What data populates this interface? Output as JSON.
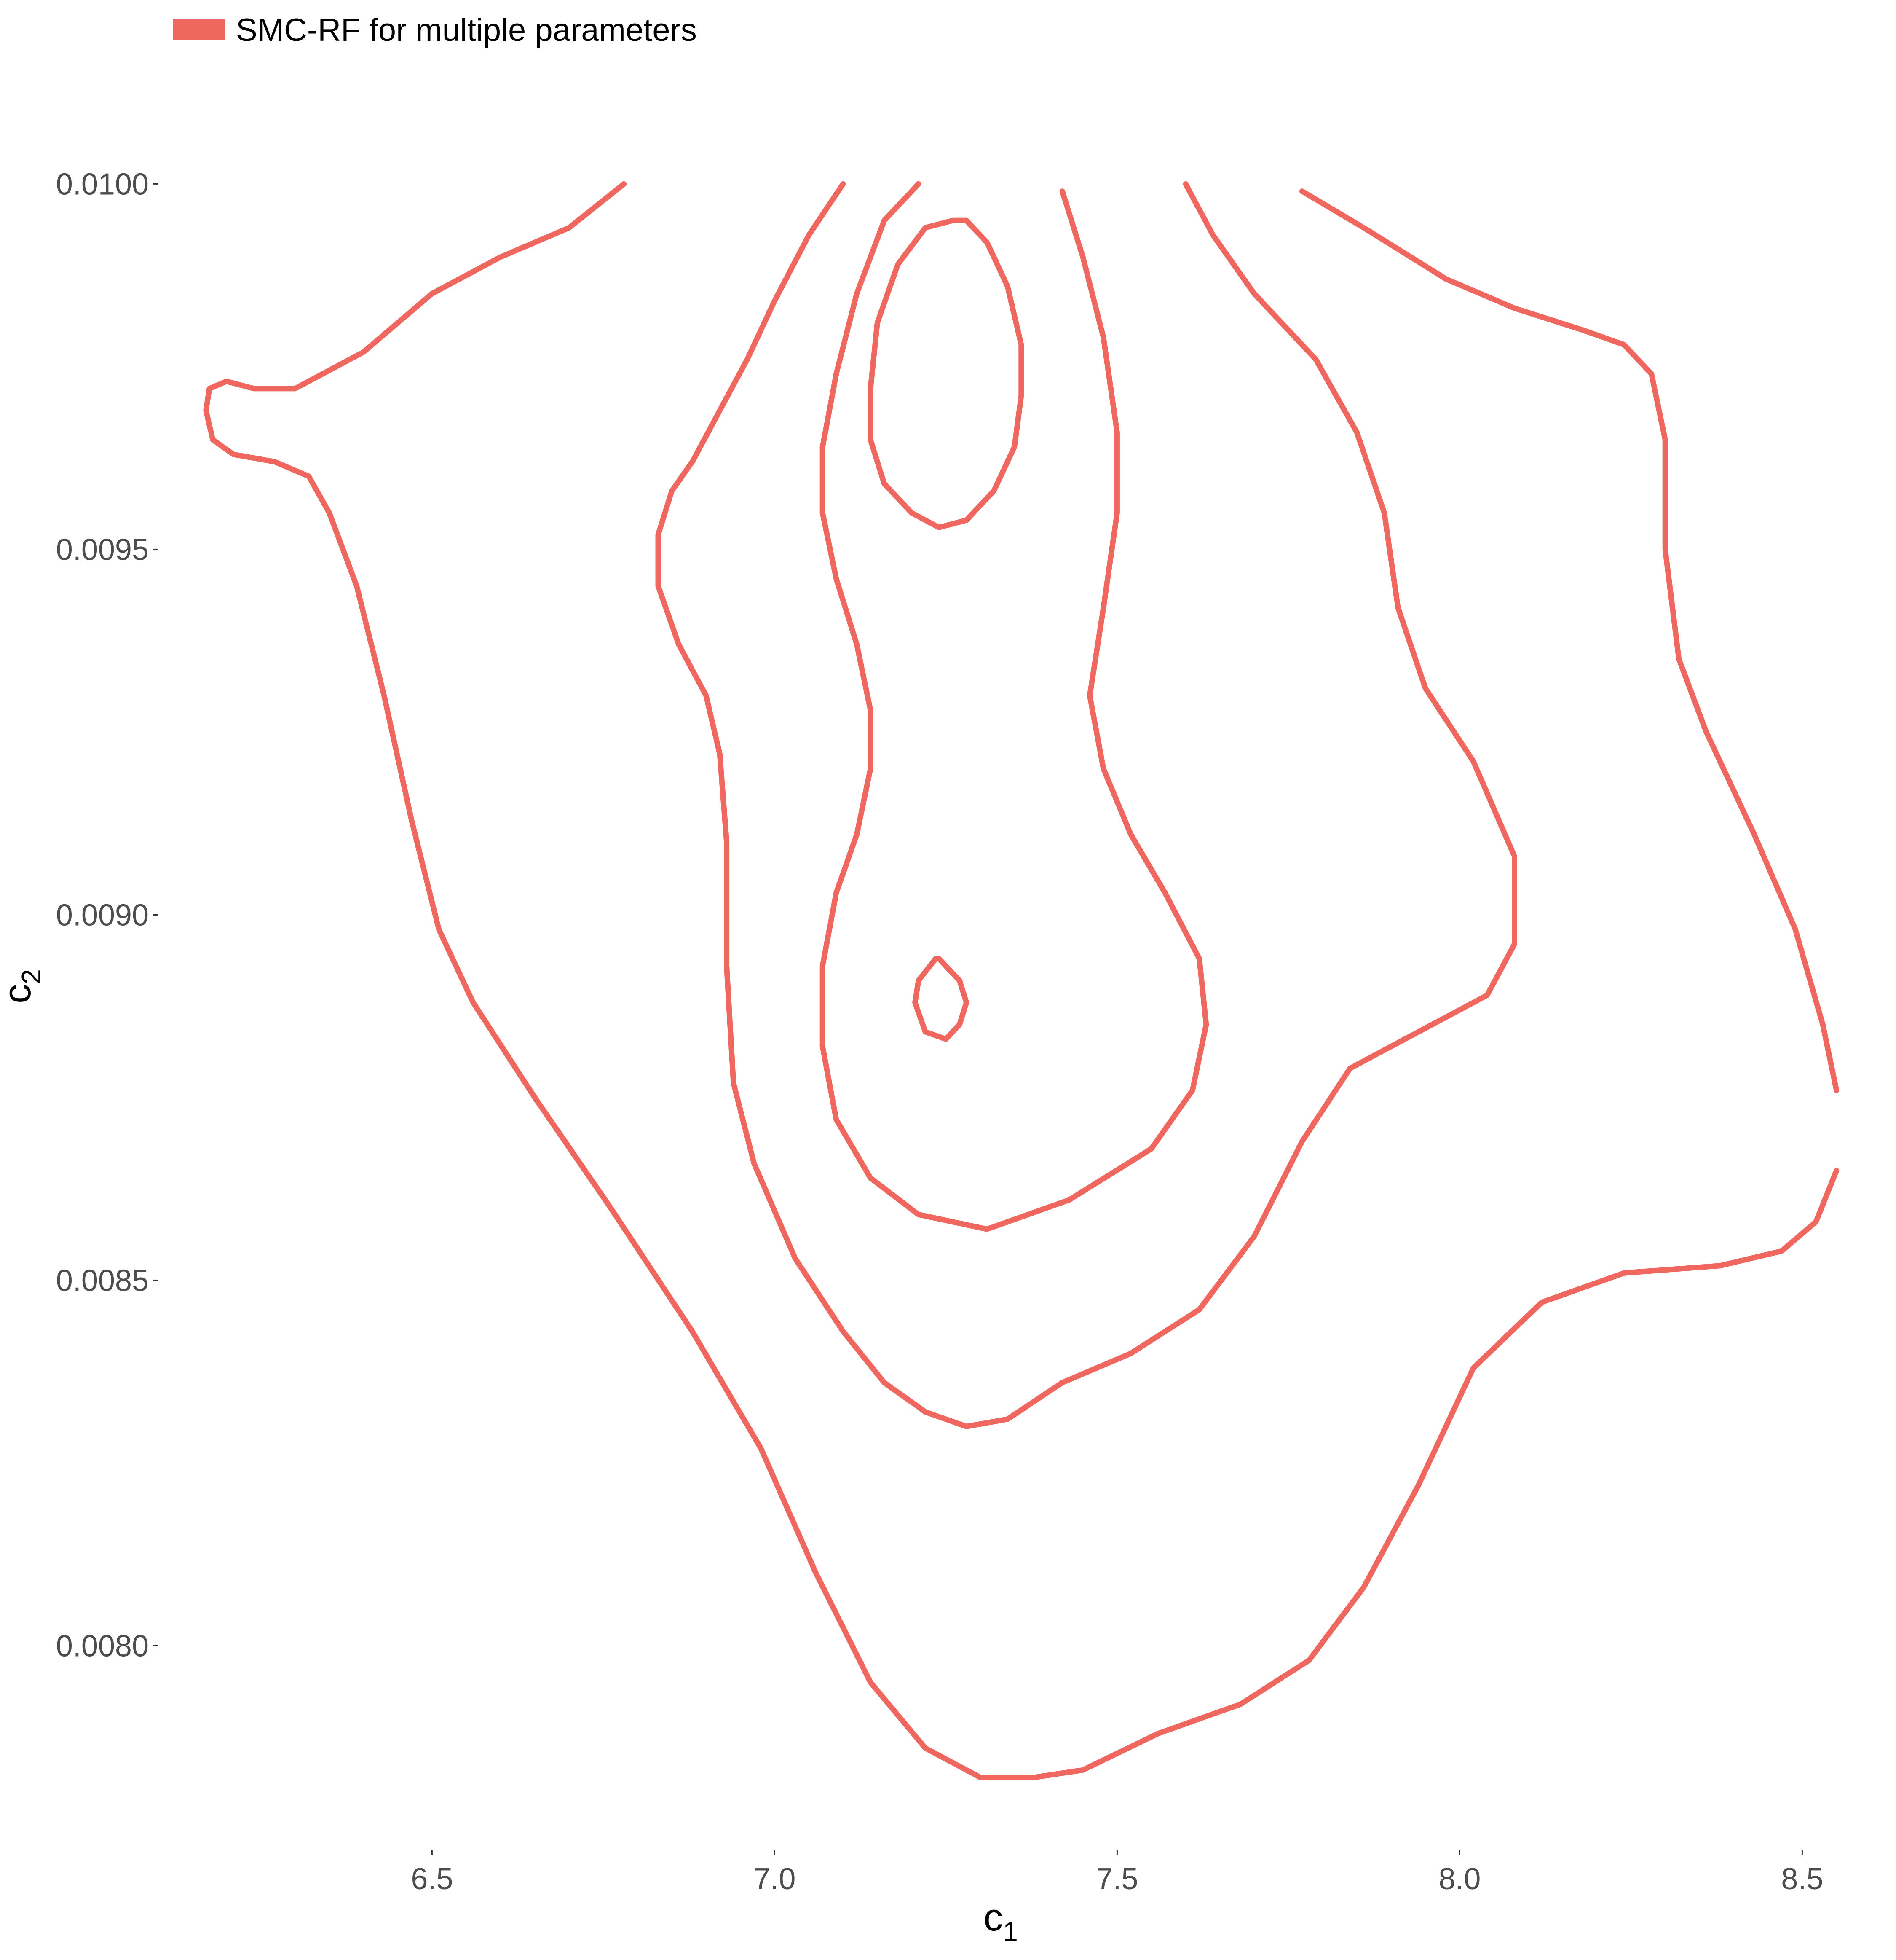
{
  "chart_data": {
    "type": "contour",
    "title": "",
    "xlabel": "c",
    "xlabel_sub": "1",
    "ylabel": "c",
    "ylabel_sub": "2",
    "xlim": [
      6.1,
      8.6
    ],
    "ylim": [
      0.00772,
      0.01007
    ],
    "x_ticks": [
      6.5,
      7.0,
      7.5,
      8.0,
      8.5
    ],
    "x_tick_labels": [
      "6.5",
      "7.0",
      "7.5",
      "8.0",
      "8.5"
    ],
    "y_ticks": [
      0.008,
      0.0085,
      0.009,
      0.0095,
      0.01
    ],
    "y_tick_labels": [
      "0.0080",
      "0.0085",
      "0.0090",
      "0.0095",
      "0.0100"
    ],
    "grid": false,
    "legend_position": "top-left",
    "series": [
      {
        "name": "SMC-RF for multiple parameters",
        "color": "#f0675f",
        "contours": [
          {
            "closed": false,
            "points": [
              [
                6.78,
                0.01
              ],
              [
                6.7,
                0.00994
              ],
              [
                6.6,
                0.0099
              ],
              [
                6.5,
                0.00985
              ],
              [
                6.4,
                0.00977
              ],
              [
                6.3,
                0.00972
              ],
              [
                6.24,
                0.00972
              ],
              [
                6.2,
                0.00973
              ],
              [
                6.175,
                0.00972
              ],
              [
                6.17,
                0.00969
              ],
              [
                6.18,
                0.00965
              ],
              [
                6.21,
                0.00963
              ],
              [
                6.27,
                0.00962
              ],
              [
                6.32,
                0.0096
              ],
              [
                6.35,
                0.00955
              ],
              [
                6.39,
                0.00945
              ],
              [
                6.43,
                0.0093
              ],
              [
                6.47,
                0.00913
              ],
              [
                6.51,
                0.00898
              ],
              [
                6.56,
                0.00888
              ],
              [
                6.65,
                0.00875
              ],
              [
                6.76,
                0.0086
              ],
              [
                6.88,
                0.00843
              ],
              [
                6.98,
                0.00827
              ],
              [
                7.06,
                0.0081
              ],
              [
                7.14,
                0.00795
              ],
              [
                7.22,
                0.00786
              ],
              [
                7.3,
                0.00782
              ],
              [
                7.38,
                0.00782
              ],
              [
                7.45,
                0.00783
              ],
              [
                7.56,
                0.00788
              ],
              [
                7.68,
                0.00792
              ],
              [
                7.78,
                0.00798
              ],
              [
                7.86,
                0.00808
              ],
              [
                7.94,
                0.00822
              ],
              [
                8.02,
                0.00838
              ],
              [
                8.12,
                0.00847
              ],
              [
                8.24,
                0.00851
              ],
              [
                8.38,
                0.00852
              ],
              [
                8.47,
                0.00854
              ],
              [
                8.52,
                0.00858
              ],
              [
                8.55,
                0.00865
              ]
            ]
          },
          {
            "closed": false,
            "points": [
              [
                8.55,
                0.00876
              ],
              [
                8.53,
                0.00885
              ],
              [
                8.49,
                0.00898
              ],
              [
                8.43,
                0.00911
              ],
              [
                8.36,
                0.00925
              ],
              [
                8.32,
                0.00935
              ],
              [
                8.3,
                0.0095
              ],
              [
                8.3,
                0.00965
              ],
              [
                8.28,
                0.00974
              ],
              [
                8.24,
                0.00978
              ],
              [
                8.18,
                0.0098
              ],
              [
                8.08,
                0.00983
              ],
              [
                7.98,
                0.00987
              ],
              [
                7.86,
                0.00994
              ],
              [
                7.77,
                0.00999
              ]
            ]
          },
          {
            "closed": false,
            "points": [
              [
                7.1,
                0.01
              ],
              [
                7.05,
                0.00993
              ],
              [
                7.0,
                0.00984
              ],
              [
                6.96,
                0.00976
              ],
              [
                6.92,
                0.00969
              ],
              [
                6.88,
                0.00962
              ],
              [
                6.85,
                0.00958
              ],
              [
                6.83,
                0.00952
              ],
              [
                6.83,
                0.00945
              ],
              [
                6.86,
                0.00937
              ],
              [
                6.9,
                0.0093
              ],
              [
                6.92,
                0.00922
              ],
              [
                6.93,
                0.0091
              ],
              [
                6.93,
                0.00893
              ],
              [
                6.94,
                0.00877
              ],
              [
                6.97,
                0.00866
              ],
              [
                7.03,
                0.00853
              ],
              [
                7.1,
                0.00843
              ],
              [
                7.16,
                0.00836
              ],
              [
                7.22,
                0.00832
              ],
              [
                7.28,
                0.0083
              ],
              [
                7.34,
                0.00831
              ],
              [
                7.42,
                0.00836
              ],
              [
                7.52,
                0.0084
              ],
              [
                7.62,
                0.00846
              ],
              [
                7.7,
                0.00856
              ],
              [
                7.77,
                0.00869
              ],
              [
                7.84,
                0.00879
              ],
              [
                7.94,
                0.00884
              ],
              [
                8.04,
                0.00889
              ],
              [
                8.08,
                0.00896
              ],
              [
                8.08,
                0.00908
              ],
              [
                8.02,
                0.00921
              ],
              [
                7.95,
                0.00931
              ],
              [
                7.91,
                0.00942
              ],
              [
                7.89,
                0.00955
              ],
              [
                7.85,
                0.00966
              ],
              [
                7.79,
                0.00976
              ],
              [
                7.7,
                0.00985
              ],
              [
                7.64,
                0.00993
              ],
              [
                7.6,
                0.01
              ]
            ]
          },
          {
            "closed": false,
            "points": [
              [
                7.21,
                0.01
              ],
              [
                7.16,
                0.00995
              ],
              [
                7.12,
                0.00985
              ],
              [
                7.09,
                0.00974
              ],
              [
                7.07,
                0.00964
              ],
              [
                7.07,
                0.00955
              ],
              [
                7.09,
                0.00946
              ],
              [
                7.12,
                0.00937
              ],
              [
                7.14,
                0.00928
              ],
              [
                7.14,
                0.0092
              ],
              [
                7.12,
                0.00911
              ],
              [
                7.09,
                0.00903
              ],
              [
                7.07,
                0.00893
              ],
              [
                7.07,
                0.00882
              ],
              [
                7.09,
                0.00872
              ],
              [
                7.14,
                0.00864
              ],
              [
                7.21,
                0.00859
              ],
              [
                7.31,
                0.00857
              ],
              [
                7.43,
                0.00861
              ],
              [
                7.55,
                0.00868
              ],
              [
                7.61,
                0.00876
              ],
              [
                7.63,
                0.00885
              ],
              [
                7.62,
                0.00894
              ],
              [
                7.57,
                0.00903
              ],
              [
                7.52,
                0.00911
              ],
              [
                7.48,
                0.0092
              ],
              [
                7.46,
                0.0093
              ],
              [
                7.48,
                0.00942
              ],
              [
                7.5,
                0.00955
              ],
              [
                7.5,
                0.00966
              ],
              [
                7.48,
                0.00979
              ],
              [
                7.45,
                0.0099
              ],
              [
                7.42,
                0.00999
              ]
            ]
          },
          {
            "closed": true,
            "points": [
              [
                7.26,
                0.00995
              ],
              [
                7.22,
                0.00994
              ],
              [
                7.18,
                0.00989
              ],
              [
                7.15,
                0.00981
              ],
              [
                7.14,
                0.00972
              ],
              [
                7.14,
                0.00965
              ],
              [
                7.16,
                0.00959
              ],
              [
                7.2,
                0.00955
              ],
              [
                7.24,
                0.00953
              ],
              [
                7.28,
                0.00954
              ],
              [
                7.32,
                0.00958
              ],
              [
                7.35,
                0.00964
              ],
              [
                7.36,
                0.00971
              ],
              [
                7.36,
                0.00978
              ],
              [
                7.34,
                0.00986
              ],
              [
                7.31,
                0.00992
              ],
              [
                7.28,
                0.00995
              ]
            ]
          },
          {
            "closed": true,
            "points": [
              [
                7.24,
                0.00894
              ],
              [
                7.27,
                0.00891
              ],
              [
                7.28,
                0.00888
              ],
              [
                7.27,
                0.00885
              ],
              [
                7.25,
                0.00883
              ],
              [
                7.22,
                0.00884
              ],
              [
                7.205,
                0.00888
              ],
              [
                7.21,
                0.00891
              ],
              [
                7.235,
                0.00894
              ]
            ]
          }
        ]
      }
    ]
  }
}
